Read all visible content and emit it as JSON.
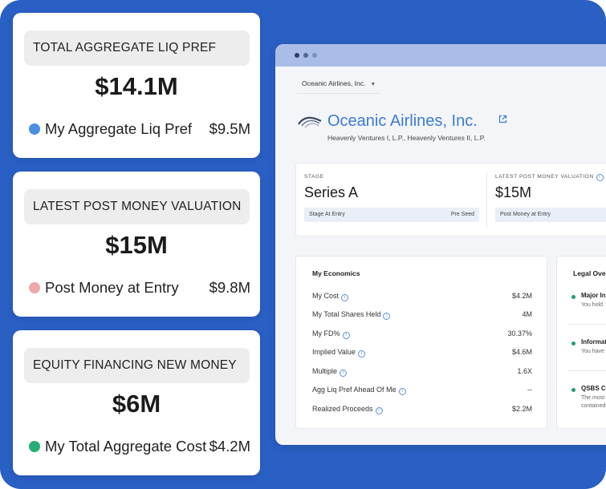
{
  "cards": [
    {
      "title": "TOTAL AGGREGATE LIQ PREF",
      "value": "$14.1M",
      "sub_label": "My Aggregate Liq Pref",
      "sub_value": "$9.5M",
      "dot_color": "#4a90e2"
    },
    {
      "title": "LATEST POST MONEY VALUATION",
      "value": "$15M",
      "sub_label": "Post Money at Entry",
      "sub_value": "$9.8M",
      "dot_color": "#eda7ad"
    },
    {
      "title": "EQUITY FINANCING NEW MONEY",
      "value": "$6M",
      "sub_label": "My Total Aggregate Cost",
      "sub_value": "$4.2M",
      "dot_color": "#27ae77"
    }
  ],
  "browser": {
    "company_select": "Oceanic Airlines, Inc.",
    "company_name": "Oceanic Airlines, Inc.",
    "funds": "Heavenly Ventures I, L.P., Heavenly Ventures II, L.P.",
    "stage": {
      "caption": "STAGE",
      "value": "Series A",
      "sub_label": "Stage At Entry",
      "sub_value": "Pre Seed"
    },
    "valuation": {
      "caption": "LATEST POST MONEY VALUATION",
      "value": "$15M",
      "sub_label": "Post Money at Entry"
    },
    "economics": {
      "title": "My Economics",
      "rows": [
        {
          "label": "My Cost",
          "value": "$4.2M"
        },
        {
          "label": "My Total Shares Held",
          "value": "4M"
        },
        {
          "label": "My FD%",
          "value": "30.37%"
        },
        {
          "label": "Implied Value",
          "value": "$4.6M"
        },
        {
          "label": "Multiple",
          "value": "1.6X"
        },
        {
          "label": "Agg Liq Pref Ahead Of Me",
          "value": "--"
        },
        {
          "label": "Realized Proceeds",
          "value": "$2.2M"
        }
      ]
    },
    "legal": {
      "title": "Legal Over",
      "items": [
        {
          "title": "Major In",
          "text": "You hold"
        },
        {
          "title": "Informat",
          "text": "You have"
        },
        {
          "title": "QSBS C",
          "text": "The most",
          "text2": "contained"
        }
      ]
    }
  },
  "colors": {
    "background": "#2a5fc4",
    "accent": "#3a7bd5",
    "bar": "#aabde9"
  }
}
